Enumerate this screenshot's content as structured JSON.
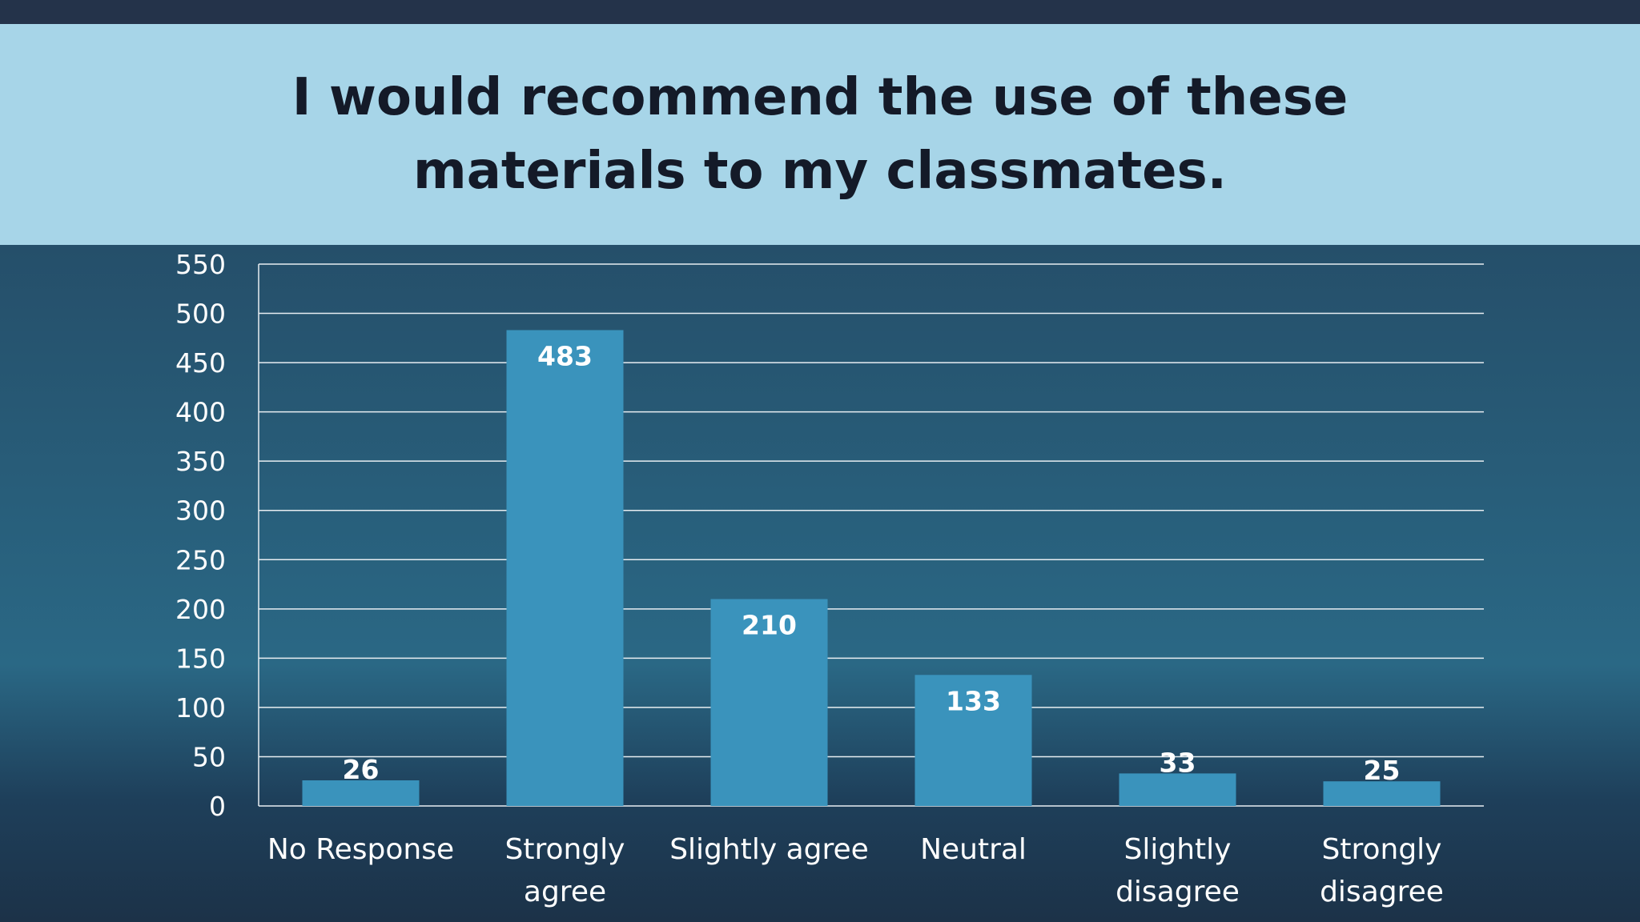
{
  "slide": {
    "title": "I would recommend the use of these materials to my classmates."
  },
  "chart_data": {
    "type": "bar",
    "title": "",
    "xlabel": "",
    "ylabel": "",
    "categories": [
      "No Response",
      "Strongly agree",
      "Slightly agree",
      "Neutral",
      "Slightly disagree",
      "Strongly disagree"
    ],
    "category_lines": [
      [
        "No Response"
      ],
      [
        "Strongly",
        "agree"
      ],
      [
        "Slightly agree"
      ],
      [
        "Neutral"
      ],
      [
        "Slightly",
        "disagree"
      ],
      [
        "Strongly",
        "disagree"
      ]
    ],
    "values": [
      26,
      483,
      210,
      133,
      33,
      25
    ],
    "data_labels": [
      "26",
      "483",
      "210",
      "133",
      "33",
      "25"
    ],
    "ylim": [
      0,
      550
    ],
    "yticks": [
      0,
      50,
      100,
      150,
      200,
      250,
      300,
      350,
      400,
      450,
      500,
      550
    ],
    "grid": true,
    "legend": "none",
    "colors": {
      "bar": "#3a93bc",
      "grid": "#e8eef2",
      "text": "#ffffff",
      "title_band": "#a7d5e8",
      "title_text": "#141a28"
    }
  }
}
